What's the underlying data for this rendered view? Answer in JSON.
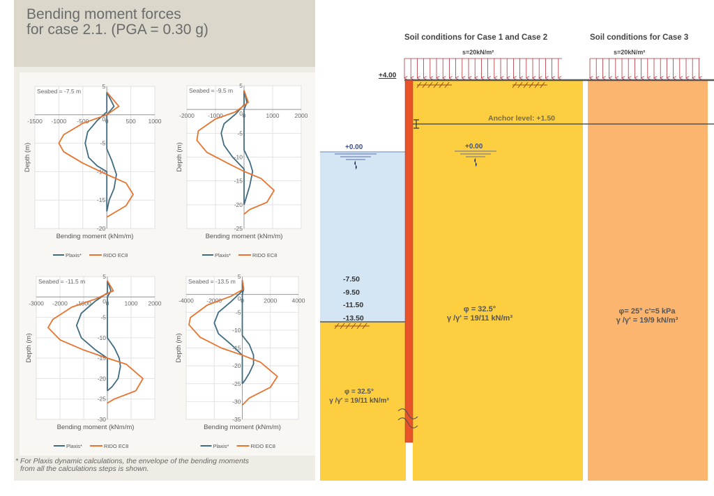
{
  "title": [
    "Bending moment forces",
    "for case 2.1. (PGA = 0.30 g)"
  ],
  "footnote": [
    "* For Plaxis dynamic calculations, the envelope of the bending moments",
    "from all the calculations steps is shown."
  ],
  "colors": {
    "plaxis": "#3f6b80",
    "rido": "#e8732f",
    "water": "#d4e6f3",
    "soil_case12": "#fcce40",
    "soil_case3": "#fbb56f",
    "wall": "#e8532a",
    "load": "#b0303a"
  },
  "chart_data": [
    {
      "type": "line",
      "annotation": "Seabed = -7.5 m",
      "xlabel": "Bending moment  (kNm/m)",
      "ylabel": "Depth (m)",
      "xlim": [
        -1500,
        1000
      ],
      "ylim": [
        -20,
        5
      ],
      "xticks": [
        "-1500",
        "-1000",
        "-500",
        "0",
        "500",
        "1000"
      ],
      "xtickvals": [
        -1500,
        -1000,
        -500,
        0,
        500,
        1000
      ],
      "yticks": [
        "5",
        "0",
        "-5",
        "-10",
        "-15",
        "-20"
      ],
      "ytickvals": [
        5,
        0,
        -5,
        -10,
        -15,
        -20
      ],
      "grid": true,
      "legend": "bottom",
      "series": [
        {
          "name": "Plaxis*",
          "color": "#3f6b80",
          "envelope_min": [
            [
              0,
              4
            ],
            [
              0,
              0.5
            ],
            [
              -200,
              -1
            ],
            [
              -400,
              -3
            ],
            [
              -450,
              -5
            ],
            [
              -380,
              -7.5
            ],
            [
              -200,
              -9
            ],
            [
              0,
              -10
            ],
            [
              0,
              -17
            ]
          ],
          "envelope_max": [
            [
              0,
              4
            ],
            [
              150,
              1.5
            ],
            [
              0,
              0
            ],
            [
              0,
              -6
            ],
            [
              100,
              -8
            ],
            [
              200,
              -10.5
            ],
            [
              150,
              -13
            ],
            [
              50,
              -15
            ],
            [
              0,
              -17
            ]
          ]
        },
        {
          "name": "RIDO EC8",
          "color": "#e8732f",
          "values": [
            [
              0,
              4
            ],
            [
              250,
              1.5
            ],
            [
              0,
              0
            ],
            [
              -500,
              -1.5
            ],
            [
              -900,
              -3.5
            ],
            [
              -1000,
              -5
            ],
            [
              -900,
              -6.5
            ],
            [
              -500,
              -8.5
            ],
            [
              0,
              -10.5
            ],
            [
              400,
              -12
            ],
            [
              550,
              -14
            ],
            [
              400,
              -16
            ],
            [
              100,
              -17.5
            ],
            [
              0,
              -18
            ]
          ]
        }
      ]
    },
    {
      "type": "line",
      "annotation": "Seabed = -9.5 m",
      "xlabel": "Bending moment  (kNm/m)",
      "ylabel": "Depth (m)",
      "xlim": [
        -2000,
        2000
      ],
      "ylim": [
        -25,
        5
      ],
      "xticks": [
        "-2000",
        "-1000",
        "0",
        "1000",
        "2000"
      ],
      "xtickvals": [
        -2000,
        -1000,
        0,
        1000,
        2000
      ],
      "yticks": [
        "5",
        "0",
        "-5",
        "-10",
        "-15",
        "-20",
        "-25"
      ],
      "ytickvals": [
        5,
        0,
        -5,
        -10,
        -15,
        -20,
        -25
      ],
      "grid": true,
      "legend": "bottom",
      "series": [
        {
          "name": "Plaxis*",
          "color": "#3f6b80",
          "envelope_min": [
            [
              0,
              4
            ],
            [
              0,
              1
            ],
            [
              -300,
              -1
            ],
            [
              -700,
              -3
            ],
            [
              -800,
              -5
            ],
            [
              -700,
              -7.5
            ],
            [
              -400,
              -10
            ],
            [
              0,
              -12.5
            ],
            [
              0,
              -20
            ]
          ],
          "envelope_max": [
            [
              0,
              4
            ],
            [
              100,
              1.5
            ],
            [
              0,
              0
            ],
            [
              0,
              -8.5
            ],
            [
              200,
              -11
            ],
            [
              300,
              -13
            ],
            [
              200,
              -16
            ],
            [
              50,
              -19
            ],
            [
              0,
              -20
            ]
          ]
        },
        {
          "name": "RIDO EC8",
          "color": "#e8732f",
          "values": [
            [
              0,
              4
            ],
            [
              150,
              1.5
            ],
            [
              -300,
              -0.5
            ],
            [
              -1000,
              -2
            ],
            [
              -1600,
              -4.5
            ],
            [
              -1650,
              -6.5
            ],
            [
              -1300,
              -9
            ],
            [
              -500,
              -11.5
            ],
            [
              0,
              -13
            ],
            [
              600,
              -14.5
            ],
            [
              1050,
              -17
            ],
            [
              800,
              -19.5
            ],
            [
              200,
              -21
            ],
            [
              0,
              -22
            ]
          ]
        }
      ]
    },
    {
      "type": "line",
      "annotation": "Seabed = -11.5 m",
      "xlabel": "Bending moment  (kNm/m)",
      "ylabel": "Depth (m)",
      "xlim": [
        -3000,
        2000
      ],
      "ylim": [
        -30,
        5
      ],
      "xticks": [
        "-3000",
        "-2000",
        "-1000",
        "0",
        "1000",
        "2000"
      ],
      "xtickvals": [
        -3000,
        -2000,
        -1000,
        0,
        1000,
        2000
      ],
      "yticks": [
        "5",
        "0",
        "-5",
        "-10",
        "-15",
        "-20",
        "-25",
        "-30"
      ],
      "ytickvals": [
        5,
        0,
        -5,
        -10,
        -15,
        -20,
        -25,
        -30
      ],
      "grid": true,
      "legend": "bottom",
      "series": [
        {
          "name": "Plaxis*",
          "color": "#3f6b80",
          "envelope_min": [
            [
              0,
              4
            ],
            [
              0,
              1
            ],
            [
              -500,
              -1
            ],
            [
              -1100,
              -4
            ],
            [
              -1300,
              -7
            ],
            [
              -1100,
              -10
            ],
            [
              -500,
              -13
            ],
            [
              0,
              -15
            ],
            [
              0,
              -23
            ]
          ],
          "envelope_max": [
            [
              0,
              4
            ],
            [
              150,
              1.5
            ],
            [
              0,
              0
            ],
            [
              0,
              -10
            ],
            [
              300,
              -12.5
            ],
            [
              500,
              -15
            ],
            [
              550,
              -17
            ],
            [
              450,
              -20
            ],
            [
              200,
              -22
            ],
            [
              0,
              -23
            ]
          ]
        },
        {
          "name": "RIDO EC8",
          "color": "#e8732f",
          "values": [
            [
              0,
              4
            ],
            [
              250,
              1.5
            ],
            [
              -500,
              -0.5
            ],
            [
              -1500,
              -2.5
            ],
            [
              -2300,
              -5.5
            ],
            [
              -2500,
              -7.5
            ],
            [
              -2000,
              -10.5
            ],
            [
              -1000,
              -13
            ],
            [
              0,
              -15
            ],
            [
              800,
              -16.5
            ],
            [
              1500,
              -20
            ],
            [
              1200,
              -23
            ],
            [
              300,
              -25
            ],
            [
              0,
              -26
            ]
          ]
        }
      ]
    },
    {
      "type": "line",
      "annotation": "Seabed = -13.5 m",
      "xlabel": "Bending moment  (kNm/m)",
      "ylabel": "Depth (m)",
      "xlim": [
        -4000,
        4000
      ],
      "ylim": [
        -35,
        5
      ],
      "xticks": [
        "-4000",
        "-2000",
        "0",
        "2000",
        "4000"
      ],
      "xtickvals": [
        -4000,
        -2000,
        0,
        2000,
        4000
      ],
      "yticks": [
        "5",
        "0",
        "-5",
        "-10",
        "-15",
        "-20",
        "-25",
        "-30",
        "-35"
      ],
      "ytickvals": [
        5,
        0,
        -5,
        -10,
        -15,
        -20,
        -25,
        -30,
        -35
      ],
      "grid": true,
      "legend": "bottom",
      "series": [
        {
          "name": "Plaxis*",
          "color": "#3f6b80",
          "envelope_min": [
            [
              0,
              4
            ],
            [
              0,
              1
            ],
            [
              -800,
              -2
            ],
            [
              -1700,
              -5
            ],
            [
              -2000,
              -8
            ],
            [
              -1700,
              -11
            ],
            [
              -800,
              -14
            ],
            [
              0,
              -17
            ],
            [
              0,
              -25
            ]
          ],
          "envelope_max": [
            [
              0,
              4
            ],
            [
              100,
              1.5
            ],
            [
              0,
              0
            ],
            [
              0,
              -11.5
            ],
            [
              500,
              -14
            ],
            [
              800,
              -17
            ],
            [
              800,
              -19.5
            ],
            [
              500,
              -22
            ],
            [
              200,
              -24
            ],
            [
              0,
              -25
            ]
          ]
        },
        {
          "name": "RIDO EC8",
          "color": "#e8732f",
          "values": [
            [
              0,
              4
            ],
            [
              100,
              1.5
            ],
            [
              -800,
              -0.5
            ],
            [
              -2500,
              -3
            ],
            [
              -3700,
              -6.5
            ],
            [
              -3800,
              -8.5
            ],
            [
              -3000,
              -12
            ],
            [
              -1500,
              -15
            ],
            [
              0,
              -17
            ],
            [
              1300,
              -19
            ],
            [
              2500,
              -23
            ],
            [
              2000,
              -26
            ],
            [
              500,
              -29
            ],
            [
              0,
              -31
            ]
          ]
        }
      ]
    }
  ],
  "diagram": {
    "header_case12": "Soil conditions  for Case 1 and Case 2",
    "header_case3": "Soil conditions  for Case 3",
    "load_case12": "s=20kN/m²",
    "load_case3": "s=20kN/m²",
    "top_level": "+4.00",
    "anchor_level": "Anchor level:  +1.50",
    "water_level_left": "+0.00",
    "water_level_right": "+0.00",
    "seabed_levels": [
      "-7.50",
      "-9.50",
      "-11.50",
      "-13.50"
    ],
    "soil_case12_upper": [
      "φ = 32.5°",
      "γ /γ' = 19/11 kN/m³"
    ],
    "soil_case12_lower": [
      "φ = 32.5°",
      "γ /γ' = 19/11 kN/m³"
    ],
    "soil_case3": [
      "φ= 25°  c'=5 kPa",
      "γ /γ' = 19/9 kN/m³"
    ]
  }
}
